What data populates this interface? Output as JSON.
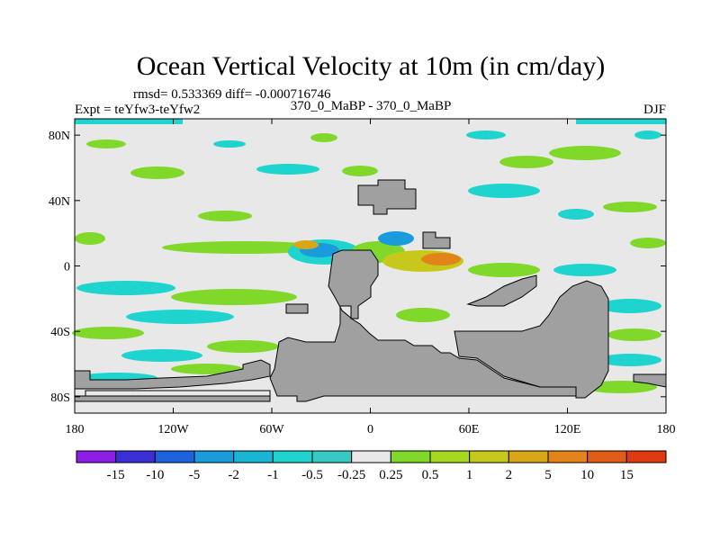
{
  "chart_data": {
    "type": "heatmap",
    "title": "Ocean Vertical Velocity at 10m (in cm/day)",
    "stats_text": "rmsd= 0.533369 diff= -0.000716746",
    "left_label": "Expt = teYfw3-teYfw2",
    "center_label": "370_0_MaBP - 370_0_MaBP",
    "right_label": "DJF",
    "x_range": [
      -180,
      180
    ],
    "y_range": [
      -90,
      90
    ],
    "x_ticks": [
      {
        "value": -180,
        "label": "180"
      },
      {
        "value": -120,
        "label": "120W"
      },
      {
        "value": -60,
        "label": "60W"
      },
      {
        "value": 0,
        "label": "0"
      },
      {
        "value": 60,
        "label": "60E"
      },
      {
        "value": 120,
        "label": "120E"
      },
      {
        "value": 180,
        "label": "180"
      }
    ],
    "y_ticks": [
      {
        "value": 80,
        "label": "80N"
      },
      {
        "value": 40,
        "label": "40N"
      },
      {
        "value": 0,
        "label": "0"
      },
      {
        "value": -40,
        "label": "40S"
      },
      {
        "value": -80,
        "label": "80S"
      }
    ],
    "contour_levels": [
      "-15",
      "-10",
      "-5",
      "-2",
      "-1",
      "-0.5",
      "-0.25",
      "0.25",
      "0.5",
      "1",
      "2",
      "5",
      "10",
      "15"
    ],
    "colors": [
      "#8c1ee6",
      "#3a2fd6",
      "#1c63e0",
      "#1a9bdc",
      "#18b6d4",
      "#1fd3cf",
      "#e8e8e8",
      "#7fd82a",
      "#a6d820",
      "#c8c81c",
      "#d9a617",
      "#e3841a",
      "#e05c16",
      "#e03a10"
    ],
    "land_color": "#a0a0a0",
    "background_color": "#e8e8e8"
  }
}
